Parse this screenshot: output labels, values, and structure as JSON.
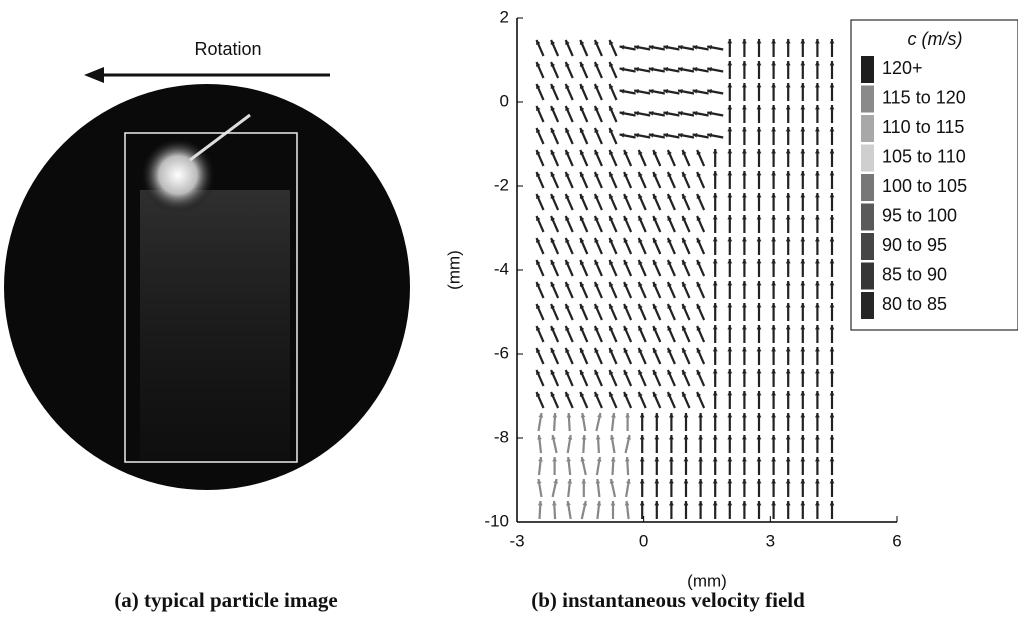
{
  "panel_a": {
    "annotation": "Rotation",
    "caption": "(a) typical particle image"
  },
  "panel_b": {
    "caption": "(b) instantaneous velocity field",
    "chart": {
      "type": "quiver",
      "xlabel": "(mm)",
      "ylabel": "(mm)",
      "xlim": [
        -3,
        6
      ],
      "ylim": [
        -10,
        2
      ],
      "xticks": [
        -3,
        0,
        3,
        6
      ],
      "yticks": [
        2,
        0,
        -2,
        -4,
        -6,
        -8,
        -10
      ],
      "legend": {
        "title": "c (m/s)",
        "entries": [
          {
            "label": "120+",
            "color": "#1e1e1e"
          },
          {
            "label": "115 to 120",
            "color": "#8a8a8a"
          },
          {
            "label": "110 to 115",
            "color": "#a8a8a8"
          },
          {
            "label": "105 to 110",
            "color": "#cfcfcf"
          },
          {
            "label": "100 to 105",
            "color": "#777777"
          },
          {
            "label": "95 to 100",
            "color": "#5a5a5a"
          },
          {
            "label": "90 to 95",
            "color": "#464646"
          },
          {
            "label": "85 to 90",
            "color": "#363636"
          },
          {
            "label": "80 to 85",
            "color": "#262626"
          }
        ]
      }
    }
  }
}
